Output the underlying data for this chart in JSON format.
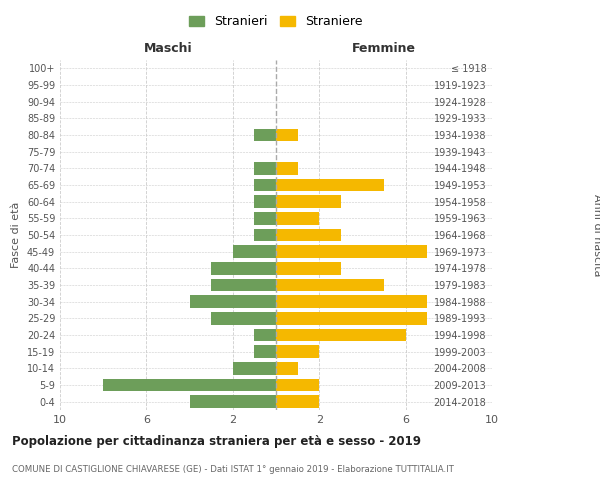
{
  "age_groups": [
    "0-4",
    "5-9",
    "10-14",
    "15-19",
    "20-24",
    "25-29",
    "30-34",
    "35-39",
    "40-44",
    "45-49",
    "50-54",
    "55-59",
    "60-64",
    "65-69",
    "70-74",
    "75-79",
    "80-84",
    "85-89",
    "90-94",
    "95-99",
    "100+"
  ],
  "birth_years": [
    "2014-2018",
    "2009-2013",
    "2004-2008",
    "1999-2003",
    "1994-1998",
    "1989-1993",
    "1984-1988",
    "1979-1983",
    "1974-1978",
    "1969-1973",
    "1964-1968",
    "1959-1963",
    "1954-1958",
    "1949-1953",
    "1944-1948",
    "1939-1943",
    "1934-1938",
    "1929-1933",
    "1924-1928",
    "1919-1923",
    "≤ 1918"
  ],
  "stranieri": [
    4,
    8,
    2,
    1,
    1,
    3,
    4,
    3,
    3,
    2,
    1,
    1,
    1,
    1,
    1,
    0,
    1,
    0,
    0,
    0,
    0
  ],
  "straniere": [
    2,
    2,
    1,
    2,
    6,
    7,
    7,
    5,
    3,
    7,
    3,
    2,
    3,
    5,
    1,
    0,
    1,
    0,
    0,
    0,
    0
  ],
  "color_stranieri": "#6d9e5a",
  "color_straniere": "#f5b800",
  "xlim": 10,
  "title": "Popolazione per cittadinanza straniera per età e sesso - 2019",
  "subtitle": "COMUNE DI CASTIGLIONE CHIAVARESE (GE) - Dati ISTAT 1° gennaio 2019 - Elaborazione TUTTITALIA.IT",
  "xlabel_left": "Maschi",
  "xlabel_right": "Femmine",
  "ylabel_left": "Fasce di età",
  "ylabel_right": "Anni di nascita",
  "legend_stranieri": "Stranieri",
  "legend_straniere": "Straniere",
  "background_color": "#ffffff",
  "grid_color": "#cccccc"
}
